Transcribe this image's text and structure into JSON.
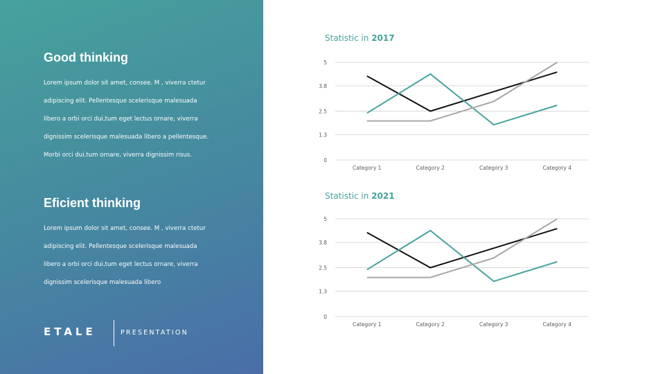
{
  "left_panel": {
    "sections": [
      {
        "title": "Good thinking",
        "body_lines": [
          "Lorem ipsum dolor sit amet, consee. M , viverra ctetur",
          "adipiscing elit. Pellentesque scelerisque malesuada",
          "libero a orbi orci dui,tum eget lectus ornare, viverra",
          "dignissim scelerisque malesuada libero a pellentesque.",
          "Morbi orci dui,tum ornare, viverra dignissim risus."
        ]
      },
      {
        "title": "Eficient thinking",
        "body_lines": [
          "Lorem ipsum dolor sit amet, consee. M , viverra ctetur",
          "adipiscing elit. Pellentesque scelerisque malesuada",
          "libero a orbi orci dui,tum eget lectus ornare, viverra",
          "dignissim scelerisque malesuada libero"
        ]
      }
    ],
    "brand": {
      "logo": "ETALE",
      "subtitle": "PRESENTATION"
    },
    "gradient_colors": [
      "#47a29c",
      "#4587a0",
      "#4a6ea8"
    ]
  },
  "colors": {
    "teal": "#46a29c",
    "black": "#111111",
    "gray": "#a6a6a6",
    "grid": "#d9d9d9",
    "tick_label": "#595959"
  },
  "chart_data": [
    {
      "type": "line",
      "title_prefix": "Statistic in",
      "title_year": "2017",
      "categories": [
        "Category 1",
        "Category 2",
        "Category 3",
        "Category 4"
      ],
      "yticks": [
        "0",
        "1.3",
        "2.5",
        "3.8",
        "5"
      ],
      "ylim": [
        0,
        5
      ],
      "grid": true,
      "series": [
        {
          "values": [
            4.3,
            2.5,
            3.5,
            4.5
          ],
          "color": "#111111"
        },
        {
          "values": [
            2.4,
            4.4,
            1.8,
            2.8
          ],
          "color": "#46a29c"
        },
        {
          "values": [
            2.0,
            2.0,
            3.0,
            5.0
          ],
          "color": "#a6a6a6"
        }
      ]
    },
    {
      "type": "line",
      "title_prefix": "Statistic in",
      "title_year": "2021",
      "categories": [
        "Category 1",
        "Category 2",
        "Category 3",
        "Category 4"
      ],
      "yticks": [
        "0",
        "1.3",
        "2.5",
        "3.8",
        "5"
      ],
      "ylim": [
        0,
        5
      ],
      "grid": true,
      "series": [
        {
          "values": [
            4.3,
            2.5,
            3.5,
            4.5
          ],
          "color": "#111111"
        },
        {
          "values": [
            2.4,
            4.4,
            1.8,
            2.8
          ],
          "color": "#46a29c"
        },
        {
          "values": [
            2.0,
            2.0,
            3.0,
            5.0
          ],
          "color": "#a6a6a6"
        }
      ]
    }
  ]
}
